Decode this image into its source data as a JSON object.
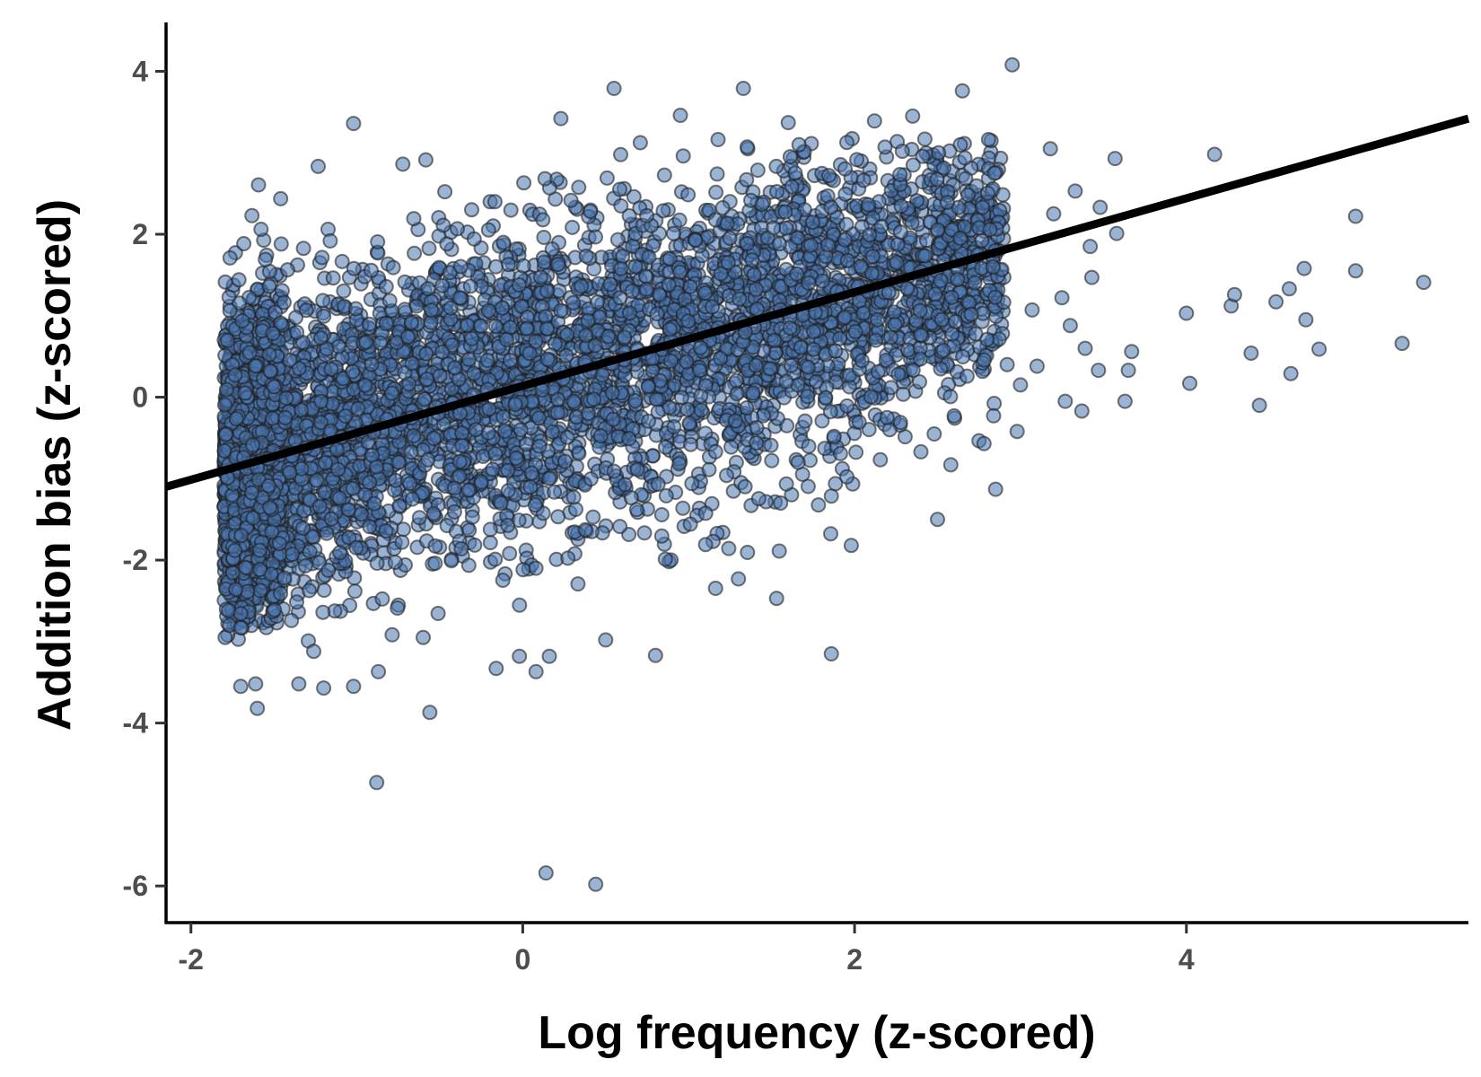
{
  "chart_data": {
    "type": "scatter",
    "title": "",
    "xlabel": "Log frequency (z-scored)",
    "ylabel": "Addition bias (z-scored)",
    "xlim": [
      -2.15,
      5.7
    ],
    "ylim": [
      -6.45,
      4.6
    ],
    "x_ticks": [
      -2,
      0,
      2,
      4
    ],
    "y_ticks": [
      -6,
      -4,
      -2,
      0,
      2,
      4
    ],
    "x_tick_labels": [
      "-2",
      "0",
      "2",
      "4"
    ],
    "y_tick_labels": [
      "-6",
      "-4",
      "-2",
      "0",
      "2",
      "4"
    ],
    "grid": false,
    "legend": "none",
    "colors": {
      "point_fill": "#4a76b0",
      "point_stroke": "#1f1f1f",
      "fit_line": "#000000",
      "axis": "#000000"
    },
    "fit_line": {
      "x": [
        -2.15,
        5.7
      ],
      "y": [
        -1.1,
        3.42
      ]
    },
    "dense_cloud": {
      "description_count": 6000,
      "x_range": [
        -1.8,
        2.9
      ],
      "y_center": "follows fit line",
      "y_spread_sd": 0.95
    },
    "outliers": [
      {
        "x": 0.14,
        "y": -5.84
      },
      {
        "x": 0.44,
        "y": -5.98
      },
      {
        "x": -0.88,
        "y": -4.73
      },
      {
        "x": -0.56,
        "y": -3.87
      },
      {
        "x": -1.6,
        "y": -3.82
      },
      {
        "x": -1.7,
        "y": -3.55
      },
      {
        "x": -1.61,
        "y": -3.52
      },
      {
        "x": -1.35,
        "y": -3.52
      },
      {
        "x": -1.2,
        "y": -3.57
      },
      {
        "x": -1.02,
        "y": -3.55
      },
      {
        "x": -0.87,
        "y": -3.37
      },
      {
        "x": -0.16,
        "y": -3.33
      },
      {
        "x": 0.08,
        "y": -3.37
      },
      {
        "x": 0.8,
        "y": -3.17
      },
      {
        "x": 1.86,
        "y": -3.15
      },
      {
        "x": -1.26,
        "y": -3.12
      },
      {
        "x": -1.7,
        "y": -2.83
      },
      {
        "x": -0.6,
        "y": -2.95
      },
      {
        "x": 0.5,
        "y": -2.98
      },
      {
        "x": 0.16,
        "y": -3.18
      },
      {
        "x": -0.02,
        "y": -3.18
      },
      {
        "x": 1.53,
        "y": -2.47
      },
      {
        "x": 1.3,
        "y": -2.23
      },
      {
        "x": 1.98,
        "y": -1.82
      },
      {
        "x": 2.5,
        "y": -1.5
      },
      {
        "x": 2.85,
        "y": -1.13
      },
      {
        "x": 2.58,
        "y": -0.83
      },
      {
        "x": 2.78,
        "y": -0.57
      },
      {
        "x": 2.6,
        "y": -0.23
      },
      {
        "x": 2.4,
        "y": -0.67
      },
      {
        "x": 2.95,
        "y": 4.08
      },
      {
        "x": 2.65,
        "y": 3.76
      },
      {
        "x": 0.55,
        "y": 3.79
      },
      {
        "x": 1.33,
        "y": 3.79
      },
      {
        "x": -1.02,
        "y": 3.36
      },
      {
        "x": 0.95,
        "y": 3.46
      },
      {
        "x": 0.23,
        "y": 3.42
      },
      {
        "x": 2.35,
        "y": 3.45
      },
      {
        "x": 1.6,
        "y": 3.37
      },
      {
        "x": 2.12,
        "y": 3.39
      },
      {
        "x": 3.18,
        "y": 3.05
      },
      {
        "x": 3.57,
        "y": 2.93
      },
      {
        "x": 4.17,
        "y": 2.98
      },
      {
        "x": 5.02,
        "y": 2.22
      },
      {
        "x": 3.48,
        "y": 2.33
      },
      {
        "x": 3.58,
        "y": 2.01
      },
      {
        "x": 3.2,
        "y": 2.25
      },
      {
        "x": 3.33,
        "y": 2.53
      },
      {
        "x": 3.42,
        "y": 1.85
      },
      {
        "x": 3.43,
        "y": 1.47
      },
      {
        "x": 3.25,
        "y": 1.22
      },
      {
        "x": 3.07,
        "y": 1.07
      },
      {
        "x": 3.3,
        "y": 0.88
      },
      {
        "x": 3.39,
        "y": 0.6
      },
      {
        "x": 3.47,
        "y": 0.33
      },
      {
        "x": 3.67,
        "y": 0.56
      },
      {
        "x": 3.65,
        "y": 0.33
      },
      {
        "x": 3.63,
        "y": -0.05
      },
      {
        "x": 3.37,
        "y": -0.17
      },
      {
        "x": 3.27,
        "y": -0.05
      },
      {
        "x": 3.0,
        "y": 0.15
      },
      {
        "x": 2.92,
        "y": 0.4
      },
      {
        "x": 3.1,
        "y": 0.38
      },
      {
        "x": 2.98,
        "y": -0.42
      },
      {
        "x": 4.0,
        "y": 1.03
      },
      {
        "x": 4.02,
        "y": 0.17
      },
      {
        "x": 4.27,
        "y": 1.12
      },
      {
        "x": 4.29,
        "y": 1.26
      },
      {
        "x": 4.39,
        "y": 0.54
      },
      {
        "x": 4.44,
        "y": -0.1
      },
      {
        "x": 4.54,
        "y": 1.17
      },
      {
        "x": 4.62,
        "y": 1.33
      },
      {
        "x": 4.63,
        "y": 0.29
      },
      {
        "x": 4.71,
        "y": 1.58
      },
      {
        "x": 4.72,
        "y": 0.95
      },
      {
        "x": 4.8,
        "y": 0.59
      },
      {
        "x": 5.02,
        "y": 1.55
      },
      {
        "x": 5.3,
        "y": 0.66
      },
      {
        "x": 5.43,
        "y": 1.41
      }
    ]
  }
}
